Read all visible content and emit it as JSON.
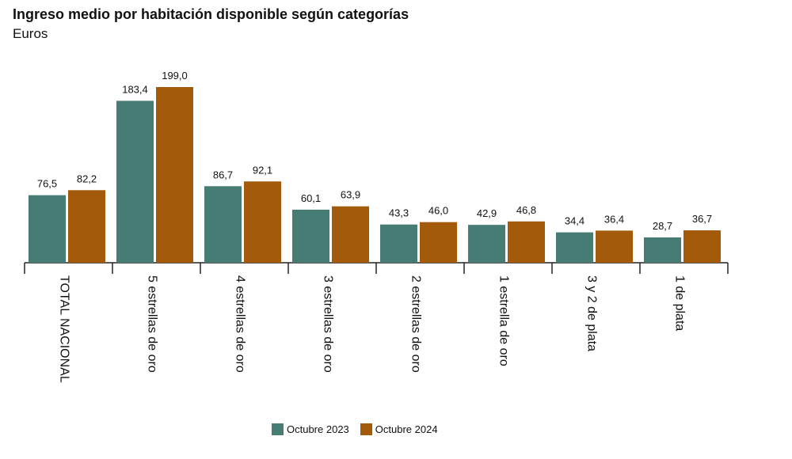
{
  "title": "Ingreso medio por habitación disponible según categorías",
  "subtitle": "Euros",
  "colors": {
    "s2023": "#467c74",
    "s2024": "#a35a0a",
    "axis": "#222222"
  },
  "chart_data": {
    "type": "bar",
    "title": "Ingreso medio por habitación disponible según categorías",
    "subtitle": "Euros",
    "categories": [
      "TOTAL NACIONAL",
      "5 estrellas de oro",
      "4 estrellas de oro",
      "3 estrellas de oro",
      "2 estrellas de oro",
      "1 estrella de oro",
      "3 y 2 de plata",
      "1 de plata"
    ],
    "series": [
      {
        "name": "Octubre 2023",
        "values": [
          76.5,
          183.4,
          86.7,
          60.1,
          43.3,
          42.9,
          34.4,
          28.7
        ],
        "labels": [
          "76,5",
          "183,4",
          "86,7",
          "60,1",
          "43,3",
          "42,9",
          "34,4",
          "28,7"
        ]
      },
      {
        "name": "Octubre 2024",
        "values": [
          82.2,
          199.0,
          92.1,
          63.9,
          46.0,
          46.8,
          36.4,
          36.7
        ],
        "labels": [
          "82,2",
          "199,0",
          "92,1",
          "63,9",
          "46,0",
          "46,8",
          "36,4",
          "36,7"
        ]
      }
    ],
    "xlabel": "",
    "ylabel": "",
    "ylim": [
      0,
      199
    ],
    "grid": false,
    "legend": "bottom"
  }
}
